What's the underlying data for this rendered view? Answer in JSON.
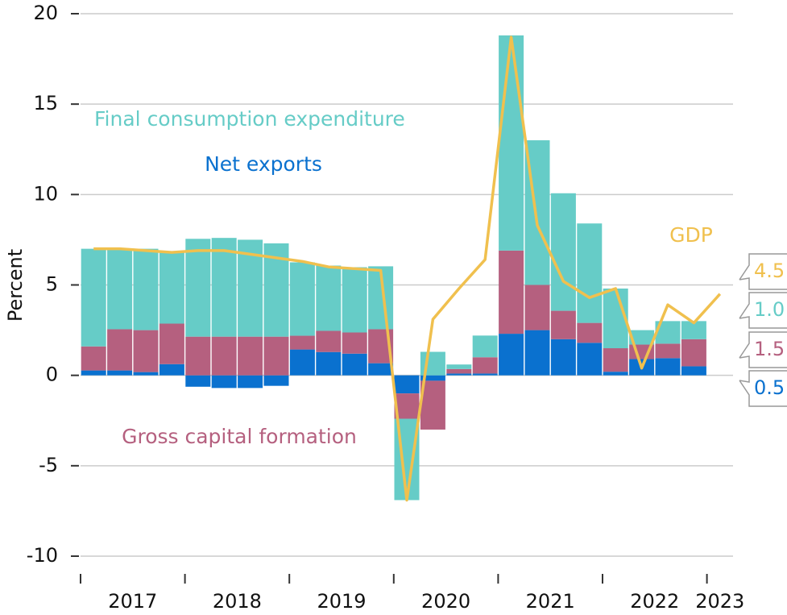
{
  "chart_data": {
    "type": "stacked_bar_line",
    "y_label": "Percent",
    "categories": [
      "2017",
      null,
      null,
      null,
      "2018",
      null,
      null,
      null,
      "2019",
      null,
      null,
      null,
      "2020",
      null,
      null,
      null,
      "2021",
      null,
      null,
      null,
      "2022",
      null,
      null,
      null,
      "2023"
    ],
    "ylim": [
      -10,
      20
    ],
    "yticks": [
      -10,
      -5,
      0,
      5,
      10,
      15,
      20
    ],
    "grid": true,
    "series": [
      {
        "name": "Net exports",
        "color": "#0a71cf",
        "kind": "bar",
        "values": [
          0.27,
          0.27,
          0.18,
          0.62,
          -0.63,
          -0.7,
          -0.7,
          -0.58,
          1.43,
          1.29,
          1.2,
          0.67,
          -1.0,
          -0.3,
          0.1,
          0.1,
          2.3,
          2.5,
          2.0,
          1.8,
          0.2,
          0.9,
          0.95,
          0.5,
          null
        ],
        "value_labels": [
          null,
          null,
          null,
          null,
          null,
          null,
          null,
          null,
          null,
          null,
          null,
          null,
          null,
          null,
          null,
          null,
          null,
          null,
          null,
          null,
          null,
          null,
          null,
          "0.5",
          null
        ]
      },
      {
        "name": "Gross capital formation",
        "color": "#b5607f",
        "kind": "bar",
        "values": [
          1.33,
          2.28,
          2.32,
          2.24,
          2.14,
          2.14,
          2.14,
          2.14,
          0.76,
          1.17,
          1.17,
          1.88,
          -1.4,
          -2.7,
          0.25,
          0.9,
          4.6,
          2.5,
          1.57,
          1.1,
          1.3,
          0.8,
          0.8,
          1.5,
          null
        ],
        "value_labels": [
          null,
          null,
          null,
          null,
          null,
          null,
          null,
          null,
          null,
          null,
          null,
          null,
          null,
          null,
          null,
          null,
          null,
          null,
          null,
          null,
          null,
          null,
          null,
          "1.5",
          null
        ]
      },
      {
        "name": "Final consumption expenditure",
        "color": "#66ccc7",
        "kind": "bar",
        "values": [
          5.4,
          4.45,
          4.5,
          3.94,
          5.41,
          5.46,
          5.36,
          5.16,
          4.06,
          3.61,
          3.61,
          3.48,
          -4.5,
          1.3,
          0.25,
          1.2,
          11.9,
          8.0,
          6.5,
          5.5,
          3.3,
          0.8,
          1.25,
          1.0,
          null
        ],
        "value_labels": [
          null,
          null,
          null,
          null,
          null,
          null,
          null,
          null,
          null,
          null,
          null,
          null,
          null,
          null,
          null,
          null,
          null,
          null,
          null,
          null,
          null,
          null,
          null,
          "1.0",
          null
        ]
      },
      {
        "name": "GDP",
        "color": "#f0c04e",
        "kind": "line",
        "values": [
          7.0,
          7.0,
          6.9,
          6.8,
          6.9,
          6.9,
          6.7,
          6.5,
          6.3,
          6.0,
          5.9,
          5.8,
          -6.9,
          3.1,
          4.8,
          6.4,
          18.7,
          8.3,
          5.2,
          4.3,
          4.8,
          0.4,
          3.9,
          2.9,
          4.5
        ]
      }
    ]
  }
}
